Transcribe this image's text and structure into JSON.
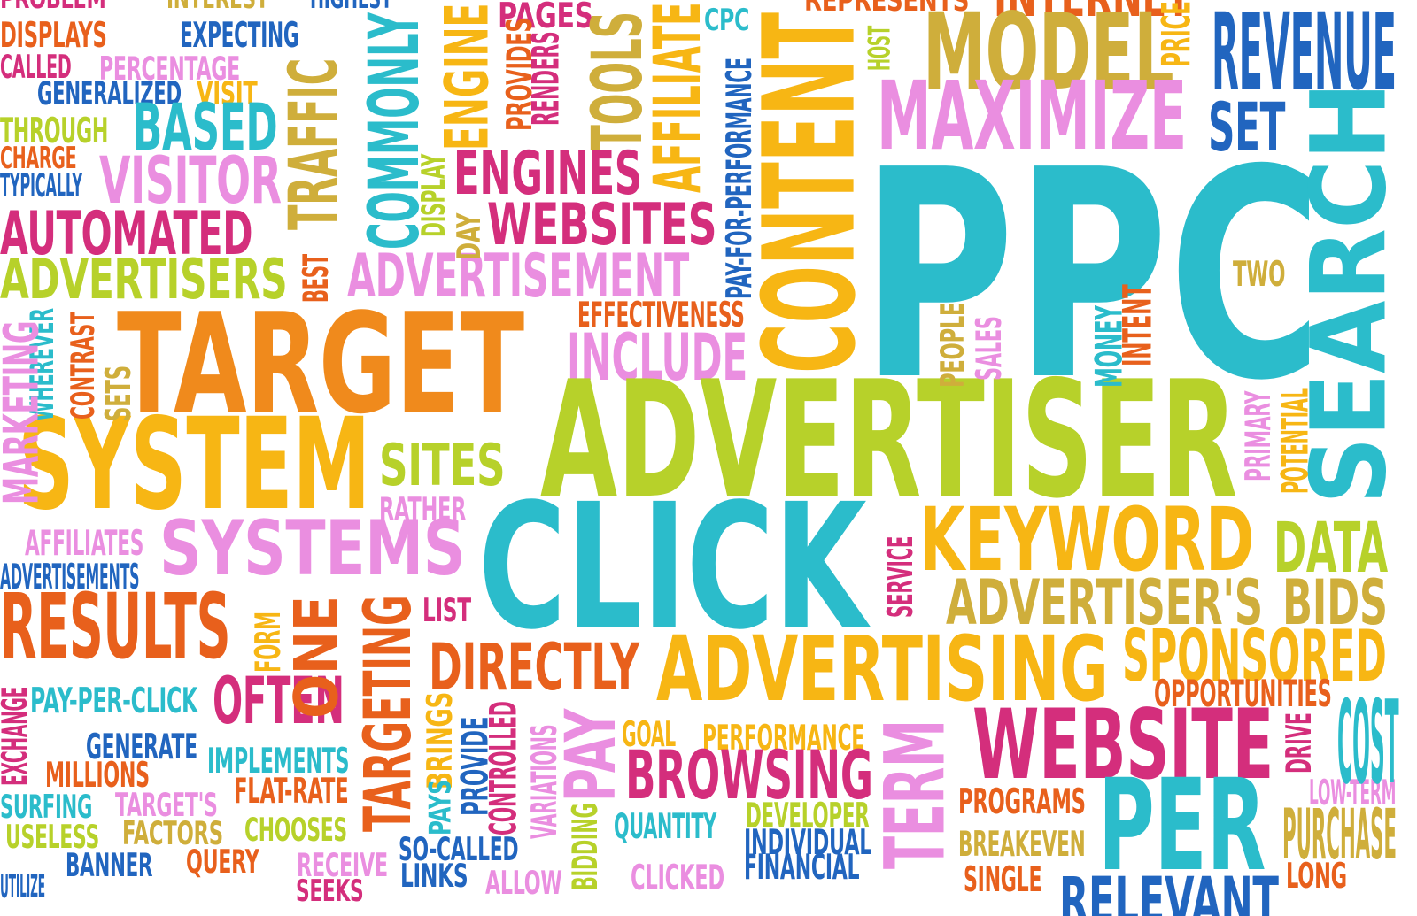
{
  "palette": {
    "cyan": "#2bbccb",
    "lime": "#b7d12a",
    "orange": "#f08a1c",
    "orange_red": "#e8601c",
    "amber": "#f7b614",
    "magenta": "#d42e7c",
    "pink": "#ea8ee0",
    "blue": "#2165bf",
    "olive": "#cfae3b",
    "yellow": "#f4b913"
  },
  "words": [
    {
      "text": "PROBLEM",
      "color": "#d42e7c"
    },
    {
      "text": "INTEREST",
      "color": "#cfae3b"
    },
    {
      "text": "HIGHEST",
      "color": "#2165bf"
    },
    {
      "text": "PAGES",
      "color": "#d42e7c"
    },
    {
      "text": "CPC",
      "color": "#2bbccb"
    },
    {
      "text": "REPRESENTS",
      "color": "#e8601c"
    },
    {
      "text": "INTERNET",
      "color": "#e8601c"
    },
    {
      "text": "DISPLAYS",
      "color": "#e8601c"
    },
    {
      "text": "EXPECTING",
      "color": "#2165bf"
    },
    {
      "text": "CALLED",
      "color": "#d42e7c"
    },
    {
      "text": "PERCENTAGE",
      "color": "#ea8ee0"
    },
    {
      "text": "GENERALIZED",
      "color": "#2165bf"
    },
    {
      "text": "VISIT",
      "color": "#f7b614"
    },
    {
      "text": "THROUGH",
      "color": "#b7d12a"
    },
    {
      "text": "BASED",
      "color": "#2bbccb"
    },
    {
      "text": "CHARGE",
      "color": "#e8601c"
    },
    {
      "text": "TYPICALLY",
      "color": "#2165bf"
    },
    {
      "text": "VISITOR",
      "color": "#ea8ee0"
    },
    {
      "text": "AUTOMATED",
      "color": "#d42e7c"
    },
    {
      "text": "ADVERTISERS",
      "color": "#b7d12a"
    },
    {
      "text": "ENGINES",
      "color": "#d42e7c"
    },
    {
      "text": "WEBSITES",
      "color": "#d42e7c"
    },
    {
      "text": "ADVERTISEMENT",
      "color": "#ea8ee0"
    },
    {
      "text": "EFFECTIVENESS",
      "color": "#e8601c"
    },
    {
      "text": "INCLUDE",
      "color": "#ea8ee0"
    },
    {
      "text": "TARGET",
      "color": "#f08a1c"
    },
    {
      "text": "SYSTEM",
      "color": "#f7b614"
    },
    {
      "text": "SITES",
      "color": "#b7d12a"
    },
    {
      "text": "RATHER",
      "color": "#ea8ee0"
    },
    {
      "text": "AFFILIATES",
      "color": "#ea8ee0"
    },
    {
      "text": "SYSTEMS",
      "color": "#ea8ee0"
    },
    {
      "text": "ADVERTISEMENTS",
      "color": "#2165bf"
    },
    {
      "text": "RESULTS",
      "color": "#e8601c"
    },
    {
      "text": "LIST",
      "color": "#d42e7c"
    },
    {
      "text": "PAY-PER-CLICK",
      "color": "#2bbccb"
    },
    {
      "text": "OFTEN",
      "color": "#d42e7c"
    },
    {
      "text": "GENERATE",
      "color": "#2165bf"
    },
    {
      "text": "IMPLEMENTS",
      "color": "#2bbccb"
    },
    {
      "text": "MILLIONS",
      "color": "#e8601c"
    },
    {
      "text": "FLAT-RATE",
      "color": "#e8601c"
    },
    {
      "text": "SURFING",
      "color": "#2bbccb"
    },
    {
      "text": "TARGET'S",
      "color": "#ea8ee0"
    },
    {
      "text": "USELESS",
      "color": "#b7d12a"
    },
    {
      "text": "FACTORS",
      "color": "#cfae3b"
    },
    {
      "text": "CHOOSES",
      "color": "#b7d12a"
    },
    {
      "text": "BANNER",
      "color": "#2165bf"
    },
    {
      "text": "QUERY",
      "color": "#e8601c"
    },
    {
      "text": "RECEIVE",
      "color": "#ea8ee0"
    },
    {
      "text": "SO-CALLED",
      "color": "#2165bf"
    },
    {
      "text": "LINKS",
      "color": "#2165bf"
    },
    {
      "text": "ALLOW",
      "color": "#ea8ee0"
    },
    {
      "text": "UTILIZE",
      "color": "#2165bf"
    },
    {
      "text": "SEEKS",
      "color": "#d42e7c"
    },
    {
      "text": "MODEL",
      "color": "#cfae3b"
    },
    {
      "text": "REVENUE",
      "color": "#2165bf"
    },
    {
      "text": "MAXIMIZE",
      "color": "#ea8ee0"
    },
    {
      "text": "SET",
      "color": "#2165bf"
    },
    {
      "text": "PPC",
      "color": "#2bbccb"
    },
    {
      "text": "TWO",
      "color": "#cfae3b"
    },
    {
      "text": "ADVERTISER",
      "color": "#b7d12a"
    },
    {
      "text": "CLICK",
      "color": "#2bbccb"
    },
    {
      "text": "KEYWORD",
      "color": "#f7b614"
    },
    {
      "text": "DATA",
      "color": "#b7d12a"
    },
    {
      "text": "ADVERTISER'S",
      "color": "#cfae3b"
    },
    {
      "text": "BIDS",
      "color": "#cfae3b"
    },
    {
      "text": "SPONSORED",
      "color": "#f7b614"
    },
    {
      "text": "OPPORTUNITIES",
      "color": "#e8601c"
    },
    {
      "text": "DIRECTLY",
      "color": "#e8601c"
    },
    {
      "text": "ADVERTISING",
      "color": "#f7b614"
    },
    {
      "text": "GOAL",
      "color": "#f7b614"
    },
    {
      "text": "PERFORMANCE",
      "color": "#f7b614"
    },
    {
      "text": "BROWSING",
      "color": "#d42e7c"
    },
    {
      "text": "WEBSITE",
      "color": "#d42e7c"
    },
    {
      "text": "QUANTITY",
      "color": "#2bbccb"
    },
    {
      "text": "DEVELOPER",
      "color": "#b7d12a"
    },
    {
      "text": "INDIVIDUAL",
      "color": "#2165bf"
    },
    {
      "text": "FINANCIAL",
      "color": "#2165bf"
    },
    {
      "text": "CLICKED",
      "color": "#ea8ee0"
    },
    {
      "text": "PROGRAMS",
      "color": "#e8601c"
    },
    {
      "text": "BREAKEVEN",
      "color": "#cfae3b"
    },
    {
      "text": "SINGLE",
      "color": "#e8601c"
    },
    {
      "text": "PER",
      "color": "#2bbccb"
    },
    {
      "text": "RELEVANT",
      "color": "#2165bf"
    },
    {
      "text": "LOW-TERM",
      "color": "#ea8ee0"
    },
    {
      "text": "PURCHASE",
      "color": "#cfae3b"
    },
    {
      "text": "LONG",
      "color": "#e8601c"
    },
    {
      "text": "COST",
      "color": "#2bbccb"
    },
    {
      "text": "ENGINE",
      "color": "#f7b614"
    },
    {
      "text": "PROVIDES",
      "color": "#e8601c"
    },
    {
      "text": "RENDERS",
      "color": "#d42e7c"
    },
    {
      "text": "TOOLS",
      "color": "#cfae3b"
    },
    {
      "text": "AFFILIATE",
      "color": "#f7b614"
    },
    {
      "text": "PAY-FOR-PERFORMANCE",
      "color": "#2165bf"
    },
    {
      "text": "CONTENT",
      "color": "#f7b614"
    },
    {
      "text": "HOST",
      "color": "#b7d12a"
    },
    {
      "text": "PRICE",
      "color": "#f7b614"
    },
    {
      "text": "SEARCH",
      "color": "#2bbccb"
    },
    {
      "text": "TRAFFIC",
      "color": "#cfae3b"
    },
    {
      "text": "COMMONLY",
      "color": "#2bbccb"
    },
    {
      "text": "DISPLAY",
      "color": "#b7d12a"
    },
    {
      "text": "DAY",
      "color": "#cfae3b"
    },
    {
      "text": "BEST",
      "color": "#e8601c"
    },
    {
      "text": "WHEREVER",
      "color": "#2bbccb"
    },
    {
      "text": "CONTRAST",
      "color": "#e8601c"
    },
    {
      "text": "SETS",
      "color": "#cfae3b"
    },
    {
      "text": "PEOPLE",
      "color": "#cfae3b"
    },
    {
      "text": "SALES",
      "color": "#ea8ee0"
    },
    {
      "text": "MONEY",
      "color": "#2bbccb"
    },
    {
      "text": "INTENT",
      "color": "#e8601c"
    },
    {
      "text": "PRIMARY",
      "color": "#ea8ee0"
    },
    {
      "text": "POTENTIAL",
      "color": "#f7b614"
    },
    {
      "text": "SERVICE",
      "color": "#d42e7c"
    },
    {
      "text": "ONE",
      "color": "#e8601c"
    },
    {
      "text": "FORM",
      "color": "#f7b614"
    },
    {
      "text": "TARGETING",
      "color": "#e8601c"
    },
    {
      "text": "EXCHANGE",
      "color": "#d42e7c"
    },
    {
      "text": "BRINGS",
      "color": "#f7b614"
    },
    {
      "text": "PAYS",
      "color": "#2bbccb"
    },
    {
      "text": "PROVIDE",
      "color": "#2165bf"
    },
    {
      "text": "CONTROLLED",
      "color": "#d42e7c"
    },
    {
      "text": "VARIATIONS",
      "color": "#ea8ee0"
    },
    {
      "text": "BIDDING",
      "color": "#b7d12a"
    },
    {
      "text": "PAY",
      "color": "#ea8ee0"
    },
    {
      "text": "TERM",
      "color": "#ea8ee0"
    },
    {
      "text": "DRIVE",
      "color": "#d42e7c"
    },
    {
      "text": "MARKETING",
      "color": "#ea8ee0"
    }
  ]
}
